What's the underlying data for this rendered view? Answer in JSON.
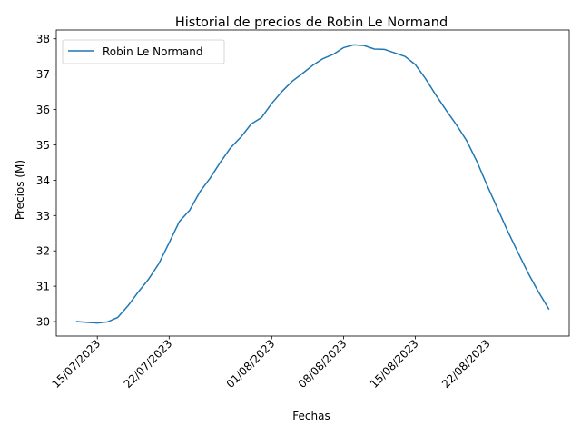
{
  "chart_data": {
    "type": "line",
    "title": "Historial de precios de Robin Le Normand",
    "xlabel": "Fechas",
    "ylabel": "Precios (M)",
    "x_ticks": [
      "15/07/2023",
      "22/07/2023",
      "01/08/2023",
      "08/08/2023",
      "15/08/2023",
      "22/08/2023"
    ],
    "y_ticks": [
      30,
      31,
      32,
      33,
      34,
      35,
      36,
      37,
      38
    ],
    "ylim": [
      29.59,
      38.25
    ],
    "xlim": [
      "2023-07-11",
      "2023-08-30"
    ],
    "grid": false,
    "legend_position": "top-left",
    "series": [
      {
        "name": "Robin Le Normand",
        "color": "#1f77b4",
        "points": [
          [
            "2023-07-13",
            30.0
          ],
          [
            "2023-07-14",
            29.98
          ],
          [
            "2023-07-15",
            29.96
          ],
          [
            "2023-07-16",
            29.99
          ],
          [
            "2023-07-17",
            30.12
          ],
          [
            "2023-07-18",
            30.45
          ],
          [
            "2023-07-19",
            30.84
          ],
          [
            "2023-07-20",
            31.2
          ],
          [
            "2023-07-21",
            31.64
          ],
          [
            "2023-07-22",
            32.23
          ],
          [
            "2023-07-23",
            32.83
          ],
          [
            "2023-07-24",
            33.15
          ],
          [
            "2023-07-25",
            33.67
          ],
          [
            "2023-07-26",
            34.06
          ],
          [
            "2023-07-27",
            34.51
          ],
          [
            "2023-07-28",
            34.92
          ],
          [
            "2023-07-29",
            35.22
          ],
          [
            "2023-07-30",
            35.59
          ],
          [
            "2023-07-31",
            35.77
          ],
          [
            "2023-08-01",
            36.17
          ],
          [
            "2023-08-02",
            36.51
          ],
          [
            "2023-08-03",
            36.8
          ],
          [
            "2023-08-04",
            37.02
          ],
          [
            "2023-08-05",
            37.25
          ],
          [
            "2023-08-06",
            37.44
          ],
          [
            "2023-08-07",
            37.56
          ],
          [
            "2023-08-08",
            37.75
          ],
          [
            "2023-08-09",
            37.83
          ],
          [
            "2023-08-10",
            37.81
          ],
          [
            "2023-08-11",
            37.71
          ],
          [
            "2023-08-12",
            37.7
          ],
          [
            "2023-08-13",
            37.6
          ],
          [
            "2023-08-14",
            37.5
          ],
          [
            "2023-08-15",
            37.27
          ],
          [
            "2023-08-16",
            36.87
          ],
          [
            "2023-08-17",
            36.41
          ],
          [
            "2023-08-18",
            35.98
          ],
          [
            "2023-08-19",
            35.57
          ],
          [
            "2023-08-20",
            35.12
          ],
          [
            "2023-08-21",
            34.53
          ],
          [
            "2023-08-22",
            33.85
          ],
          [
            "2023-08-23",
            33.21
          ],
          [
            "2023-08-24",
            32.56
          ],
          [
            "2023-08-25",
            31.96
          ],
          [
            "2023-08-26",
            31.37
          ],
          [
            "2023-08-27",
            30.84
          ],
          [
            "2023-08-28",
            30.36
          ]
        ]
      }
    ]
  }
}
